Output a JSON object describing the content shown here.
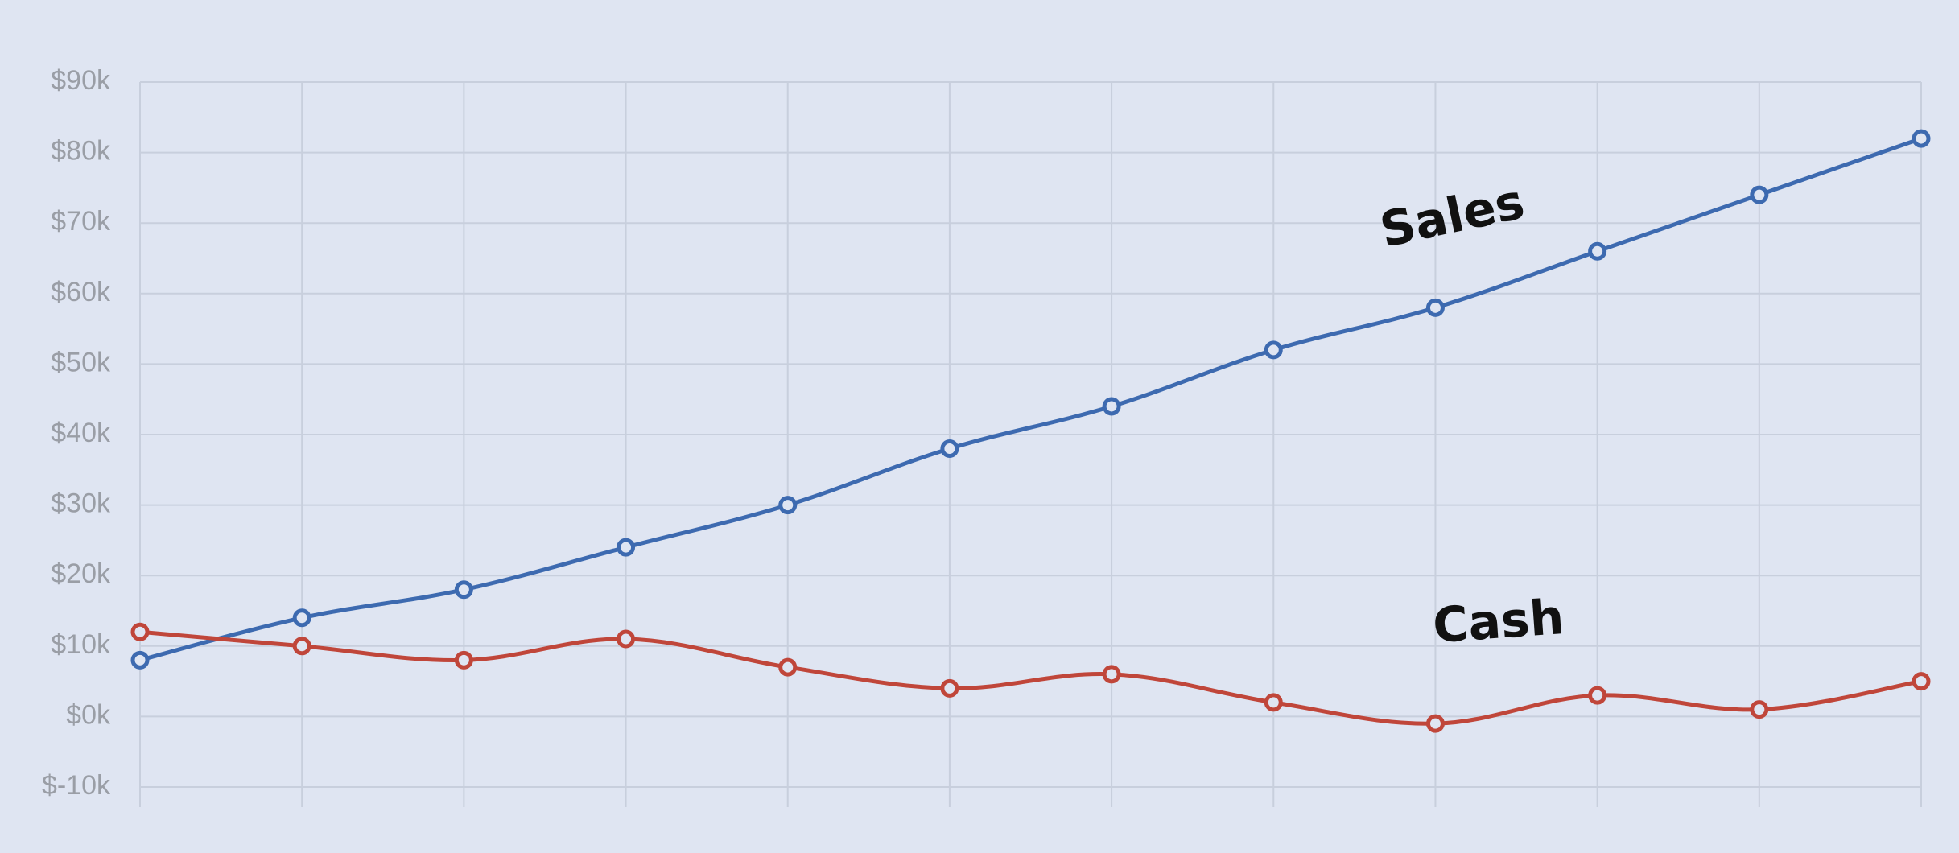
{
  "chart_data": {
    "type": "line",
    "categories": [
      null,
      null,
      null,
      null,
      null,
      null,
      null,
      null,
      null,
      null,
      null,
      null
    ],
    "series": [
      {
        "name": "Sales",
        "color": "#3d6ab0",
        "values": [
          8000,
          14000,
          18000,
          24000,
          30000,
          38000,
          44000,
          52000,
          58000,
          66000,
          74000,
          82000
        ]
      },
      {
        "name": "Cash",
        "color": "#c0463a",
        "values": [
          12000,
          10000,
          8000,
          11000,
          7000,
          4000,
          6000,
          2000,
          -1000,
          3000,
          1000,
          5000
        ]
      }
    ],
    "ylim": [
      -10000,
      90000
    ],
    "yticks": [
      {
        "value": -10000,
        "label": "$-10k"
      },
      {
        "value": 0,
        "label": "$0k"
      },
      {
        "value": 10000,
        "label": "$10k"
      },
      {
        "value": 20000,
        "label": "$20k"
      },
      {
        "value": 30000,
        "label": "$30k"
      },
      {
        "value": 40000,
        "label": "$40k"
      },
      {
        "value": 50000,
        "label": "$50k"
      },
      {
        "value": 60000,
        "label": "$60k"
      },
      {
        "value": 70000,
        "label": "$70k"
      },
      {
        "value": 80000,
        "label": "$80k"
      },
      {
        "value": 90000,
        "label": "$90k"
      }
    ],
    "grid": true
  }
}
